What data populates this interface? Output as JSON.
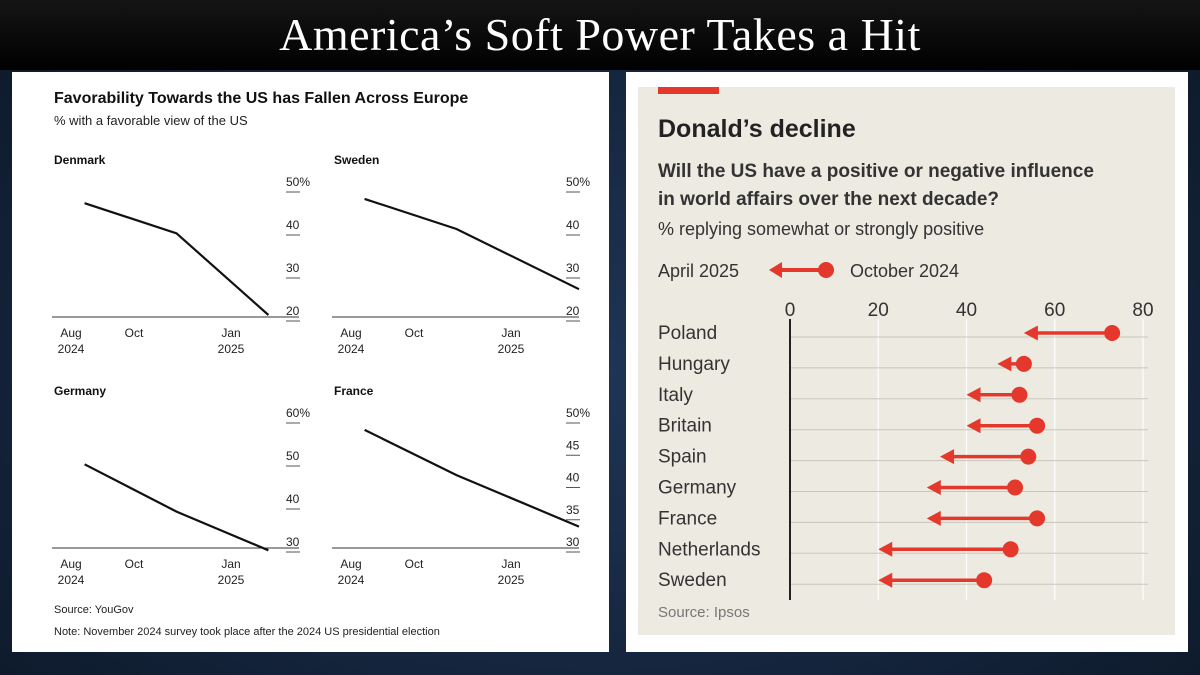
{
  "banner": {
    "title": "America’s Soft Power Takes a Hit"
  },
  "left_chart": {
    "title": "Favorability Towards the US has Fallen Across Europe",
    "subtitle": "% with a favorable view of the US",
    "source": "Source: YouGov",
    "note": "Note: November 2024 survey took place after the 2024 US presidential election"
  },
  "right_chart": {
    "title": "Donald’s decline",
    "question_line1": "Will the US have a positive or negative influence",
    "question_line2": "in world affairs over the next decade?",
    "subtitle": "% replying somewhat or strongly positive",
    "legend_end": "April 2025",
    "legend_start": "October 2024",
    "source": "Source: Ipsos",
    "accent_color": "#e3382b"
  },
  "chart_data": [
    {
      "type": "line",
      "title": "Denmark",
      "x_ticks": [
        {
          "label": "Aug",
          "sub": "2024"
        },
        {
          "label": "Oct",
          "sub": ""
        },
        {
          "label": "Jan",
          "sub": "2025"
        }
      ],
      "x_domain": [
        "2024-07",
        "2025-03"
      ],
      "y_ticks": [
        "50%",
        "40",
        "30",
        "20"
      ],
      "ylim": [
        20,
        50
      ],
      "series": [
        {
          "points": [
            {
              "x": "2024-08",
              "y": 46
            },
            {
              "x": "2024-11",
              "y": 39
            },
            {
              "x": "2025-02",
              "y": 20
            }
          ]
        }
      ]
    },
    {
      "type": "line",
      "title": "Sweden",
      "x_ticks": [
        {
          "label": "Aug",
          "sub": "2024"
        },
        {
          "label": "Oct",
          "sub": ""
        },
        {
          "label": "Jan",
          "sub": "2025"
        }
      ],
      "x_domain": [
        "2024-07",
        "2025-03"
      ],
      "y_ticks": [
        "50%",
        "40",
        "30",
        "20"
      ],
      "ylim": [
        20,
        50
      ],
      "series": [
        {
          "points": [
            {
              "x": "2024-08",
              "y": 47
            },
            {
              "x": "2024-11",
              "y": 40
            },
            {
              "x": "2025-03",
              "y": 26
            }
          ]
        }
      ]
    },
    {
      "type": "line",
      "title": "Germany",
      "x_ticks": [
        {
          "label": "Aug",
          "sub": "2024"
        },
        {
          "label": "Oct",
          "sub": ""
        },
        {
          "label": "Jan",
          "sub": "2025"
        }
      ],
      "x_domain": [
        "2024-07",
        "2025-03"
      ],
      "y_ticks": [
        "60%",
        "50",
        "40",
        "30"
      ],
      "ylim": [
        30,
        60
      ],
      "series": [
        {
          "points": [
            {
              "x": "2024-08",
              "y": 49
            },
            {
              "x": "2024-11",
              "y": 38
            },
            {
              "x": "2025-02",
              "y": 29
            }
          ]
        }
      ]
    },
    {
      "type": "line",
      "title": "France",
      "x_ticks": [
        {
          "label": "Aug",
          "sub": "2024"
        },
        {
          "label": "Oct",
          "sub": ""
        },
        {
          "label": "Jan",
          "sub": "2025"
        }
      ],
      "x_domain": [
        "2024-07",
        "2025-03"
      ],
      "y_ticks": [
        "50%",
        "45",
        "40",
        "35",
        "30"
      ],
      "ylim": [
        30,
        50
      ],
      "series": [
        {
          "points": [
            {
              "x": "2024-08",
              "y": 48
            },
            {
              "x": "2024-11",
              "y": 41
            },
            {
              "x": "2025-03",
              "y": 33
            }
          ]
        }
      ]
    },
    {
      "type": "arrow-dot",
      "x_ticks": [
        "0",
        "20",
        "40",
        "60",
        "80"
      ],
      "xlim": [
        0,
        80
      ],
      "categories": [
        "Poland",
        "Hungary",
        "Italy",
        "Britain",
        "Spain",
        "Germany",
        "France",
        "Netherlands",
        "Sweden"
      ],
      "series": [
        {
          "name": "October 2024",
          "values": [
            73,
            53,
            52,
            56,
            54,
            51,
            56,
            50,
            44
          ]
        },
        {
          "name": "April 2025",
          "values": [
            53,
            47,
            40,
            40,
            34,
            31,
            31,
            20,
            20
          ]
        }
      ]
    }
  ]
}
